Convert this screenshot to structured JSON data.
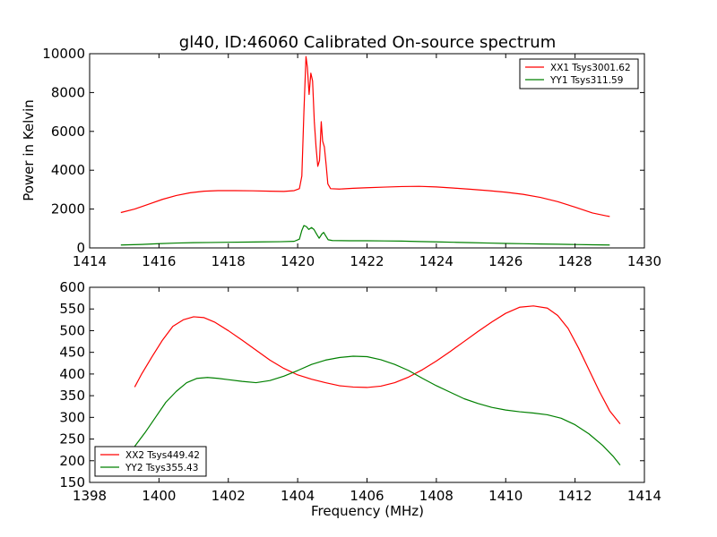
{
  "chart_data": [
    {
      "type": "line",
      "title": "gl40, ID:46060 Calibrated On-source spectrum",
      "xlabel": "",
      "ylabel": "Power in Kelvin",
      "xlim": [
        1414,
        1430
      ],
      "ylim": [
        0,
        10000
      ],
      "xticks": [
        1414,
        1416,
        1418,
        1420,
        1422,
        1424,
        1426,
        1428,
        1430
      ],
      "yticks": [
        0,
        2000,
        4000,
        6000,
        8000,
        10000
      ],
      "legend_position": "top-right",
      "series": [
        {
          "name": "XX1 Tsys3001.62",
          "color": "#ff0000",
          "points": [
            [
              1414.9,
              1820
            ],
            [
              1415.3,
              2000
            ],
            [
              1415.7,
              2250
            ],
            [
              1416.1,
              2500
            ],
            [
              1416.5,
              2700
            ],
            [
              1416.9,
              2840
            ],
            [
              1417.3,
              2920
            ],
            [
              1417.7,
              2950
            ],
            [
              1418.2,
              2950
            ],
            [
              1418.7,
              2940
            ],
            [
              1419.2,
              2920
            ],
            [
              1419.6,
              2910
            ],
            [
              1419.9,
              2950
            ],
            [
              1420.05,
              3050
            ],
            [
              1420.12,
              3700
            ],
            [
              1420.18,
              7000
            ],
            [
              1420.24,
              9850
            ],
            [
              1420.28,
              9300
            ],
            [
              1420.33,
              7900
            ],
            [
              1420.38,
              9000
            ],
            [
              1420.43,
              8600
            ],
            [
              1420.48,
              6500
            ],
            [
              1420.53,
              5200
            ],
            [
              1420.58,
              4200
            ],
            [
              1420.63,
              4500
            ],
            [
              1420.68,
              6500
            ],
            [
              1420.72,
              5500
            ],
            [
              1420.77,
              5200
            ],
            [
              1420.82,
              4300
            ],
            [
              1420.87,
              3300
            ],
            [
              1420.95,
              3050
            ],
            [
              1421.2,
              3030
            ],
            [
              1421.6,
              3070
            ],
            [
              1422.0,
              3100
            ],
            [
              1422.5,
              3130
            ],
            [
              1423.0,
              3160
            ],
            [
              1423.5,
              3170
            ],
            [
              1424.0,
              3140
            ],
            [
              1424.5,
              3080
            ],
            [
              1425.0,
              3020
            ],
            [
              1425.5,
              2950
            ],
            [
              1426.0,
              2870
            ],
            [
              1426.5,
              2760
            ],
            [
              1427.0,
              2600
            ],
            [
              1427.5,
              2380
            ],
            [
              1428.0,
              2100
            ],
            [
              1428.5,
              1800
            ],
            [
              1428.9,
              1650
            ],
            [
              1429.0,
              1620
            ]
          ]
        },
        {
          "name": "YY1 Tsys311.59",
          "color": "#008000",
          "points": [
            [
              1414.9,
              150
            ],
            [
              1415.5,
              180
            ],
            [
              1416.0,
              220
            ],
            [
              1416.5,
              250
            ],
            [
              1417.0,
              270
            ],
            [
              1417.5,
              280
            ],
            [
              1418.0,
              290
            ],
            [
              1418.5,
              300
            ],
            [
              1419.0,
              310
            ],
            [
              1419.5,
              320
            ],
            [
              1419.9,
              340
            ],
            [
              1420.05,
              450
            ],
            [
              1420.12,
              900
            ],
            [
              1420.18,
              1150
            ],
            [
              1420.25,
              1100
            ],
            [
              1420.32,
              950
            ],
            [
              1420.4,
              1050
            ],
            [
              1420.47,
              950
            ],
            [
              1420.55,
              700
            ],
            [
              1420.62,
              500
            ],
            [
              1420.7,
              720
            ],
            [
              1420.75,
              800
            ],
            [
              1420.8,
              650
            ],
            [
              1420.88,
              420
            ],
            [
              1421.0,
              380
            ],
            [
              1421.5,
              370
            ],
            [
              1422.0,
              370
            ],
            [
              1422.5,
              360
            ],
            [
              1423.0,
              350
            ],
            [
              1423.5,
              330
            ],
            [
              1424.0,
              310
            ],
            [
              1424.5,
              290
            ],
            [
              1425.0,
              270
            ],
            [
              1425.5,
              250
            ],
            [
              1426.0,
              230
            ],
            [
              1426.5,
              215
            ],
            [
              1427.0,
              200
            ],
            [
              1427.5,
              190
            ],
            [
              1428.0,
              175
            ],
            [
              1428.5,
              160
            ],
            [
              1429.0,
              150
            ]
          ]
        }
      ]
    },
    {
      "type": "line",
      "title": "",
      "xlabel": "Frequency (MHz)",
      "ylabel": "",
      "xlim": [
        1398,
        1414
      ],
      "ylim": [
        150,
        600
      ],
      "xticks": [
        1398,
        1400,
        1402,
        1404,
        1406,
        1408,
        1410,
        1412,
        1414
      ],
      "yticks": [
        150,
        200,
        250,
        300,
        350,
        400,
        450,
        500,
        550,
        600
      ],
      "legend_position": "bottom-left",
      "series": [
        {
          "name": "XX2 Tsys449.42",
          "color": "#ff0000",
          "points": [
            [
              1399.3,
              370
            ],
            [
              1399.5,
              400
            ],
            [
              1399.8,
              440
            ],
            [
              1400.1,
              478
            ],
            [
              1400.4,
              510
            ],
            [
              1400.7,
              525
            ],
            [
              1401.0,
              532
            ],
            [
              1401.3,
              530
            ],
            [
              1401.6,
              520
            ],
            [
              1402.0,
              500
            ],
            [
              1402.4,
              478
            ],
            [
              1402.8,
              455
            ],
            [
              1403.2,
              432
            ],
            [
              1403.6,
              413
            ],
            [
              1404.0,
              398
            ],
            [
              1404.4,
              388
            ],
            [
              1404.8,
              380
            ],
            [
              1405.2,
              373
            ],
            [
              1405.6,
              370
            ],
            [
              1406.0,
              369
            ],
            [
              1406.4,
              372
            ],
            [
              1406.8,
              380
            ],
            [
              1407.2,
              393
            ],
            [
              1407.6,
              410
            ],
            [
              1408.0,
              430
            ],
            [
              1408.4,
              452
            ],
            [
              1408.8,
              475
            ],
            [
              1409.2,
              498
            ],
            [
              1409.6,
              520
            ],
            [
              1410.0,
              540
            ],
            [
              1410.4,
              554
            ],
            [
              1410.8,
              557
            ],
            [
              1411.2,
              552
            ],
            [
              1411.5,
              535
            ],
            [
              1411.8,
              505
            ],
            [
              1412.1,
              460
            ],
            [
              1412.4,
              410
            ],
            [
              1412.7,
              360
            ],
            [
              1413.0,
              315
            ],
            [
              1413.3,
              285
            ]
          ]
        },
        {
          "name": "YY2 Tsys355.43",
          "color": "#008000",
          "points": [
            [
              1399.3,
              233
            ],
            [
              1399.6,
              265
            ],
            [
              1399.9,
              300
            ],
            [
              1400.2,
              335
            ],
            [
              1400.5,
              360
            ],
            [
              1400.8,
              380
            ],
            [
              1401.1,
              390
            ],
            [
              1401.4,
              392
            ],
            [
              1401.7,
              390
            ],
            [
              1402.0,
              387
            ],
            [
              1402.4,
              383
            ],
            [
              1402.8,
              380
            ],
            [
              1403.2,
              385
            ],
            [
              1403.6,
              395
            ],
            [
              1404.0,
              408
            ],
            [
              1404.4,
              422
            ],
            [
              1404.8,
              432
            ],
            [
              1405.2,
              438
            ],
            [
              1405.6,
              441
            ],
            [
              1406.0,
              440
            ],
            [
              1406.4,
              433
            ],
            [
              1406.8,
              422
            ],
            [
              1407.2,
              408
            ],
            [
              1407.6,
              390
            ],
            [
              1408.0,
              373
            ],
            [
              1408.4,
              358
            ],
            [
              1408.8,
              343
            ],
            [
              1409.2,
              332
            ],
            [
              1409.6,
              323
            ],
            [
              1410.0,
              317
            ],
            [
              1410.4,
              313
            ],
            [
              1410.8,
              310
            ],
            [
              1411.2,
              306
            ],
            [
              1411.6,
              298
            ],
            [
              1412.0,
              283
            ],
            [
              1412.4,
              262
            ],
            [
              1412.8,
              235
            ],
            [
              1413.1,
              210
            ],
            [
              1413.3,
              190
            ]
          ]
        }
      ]
    }
  ]
}
